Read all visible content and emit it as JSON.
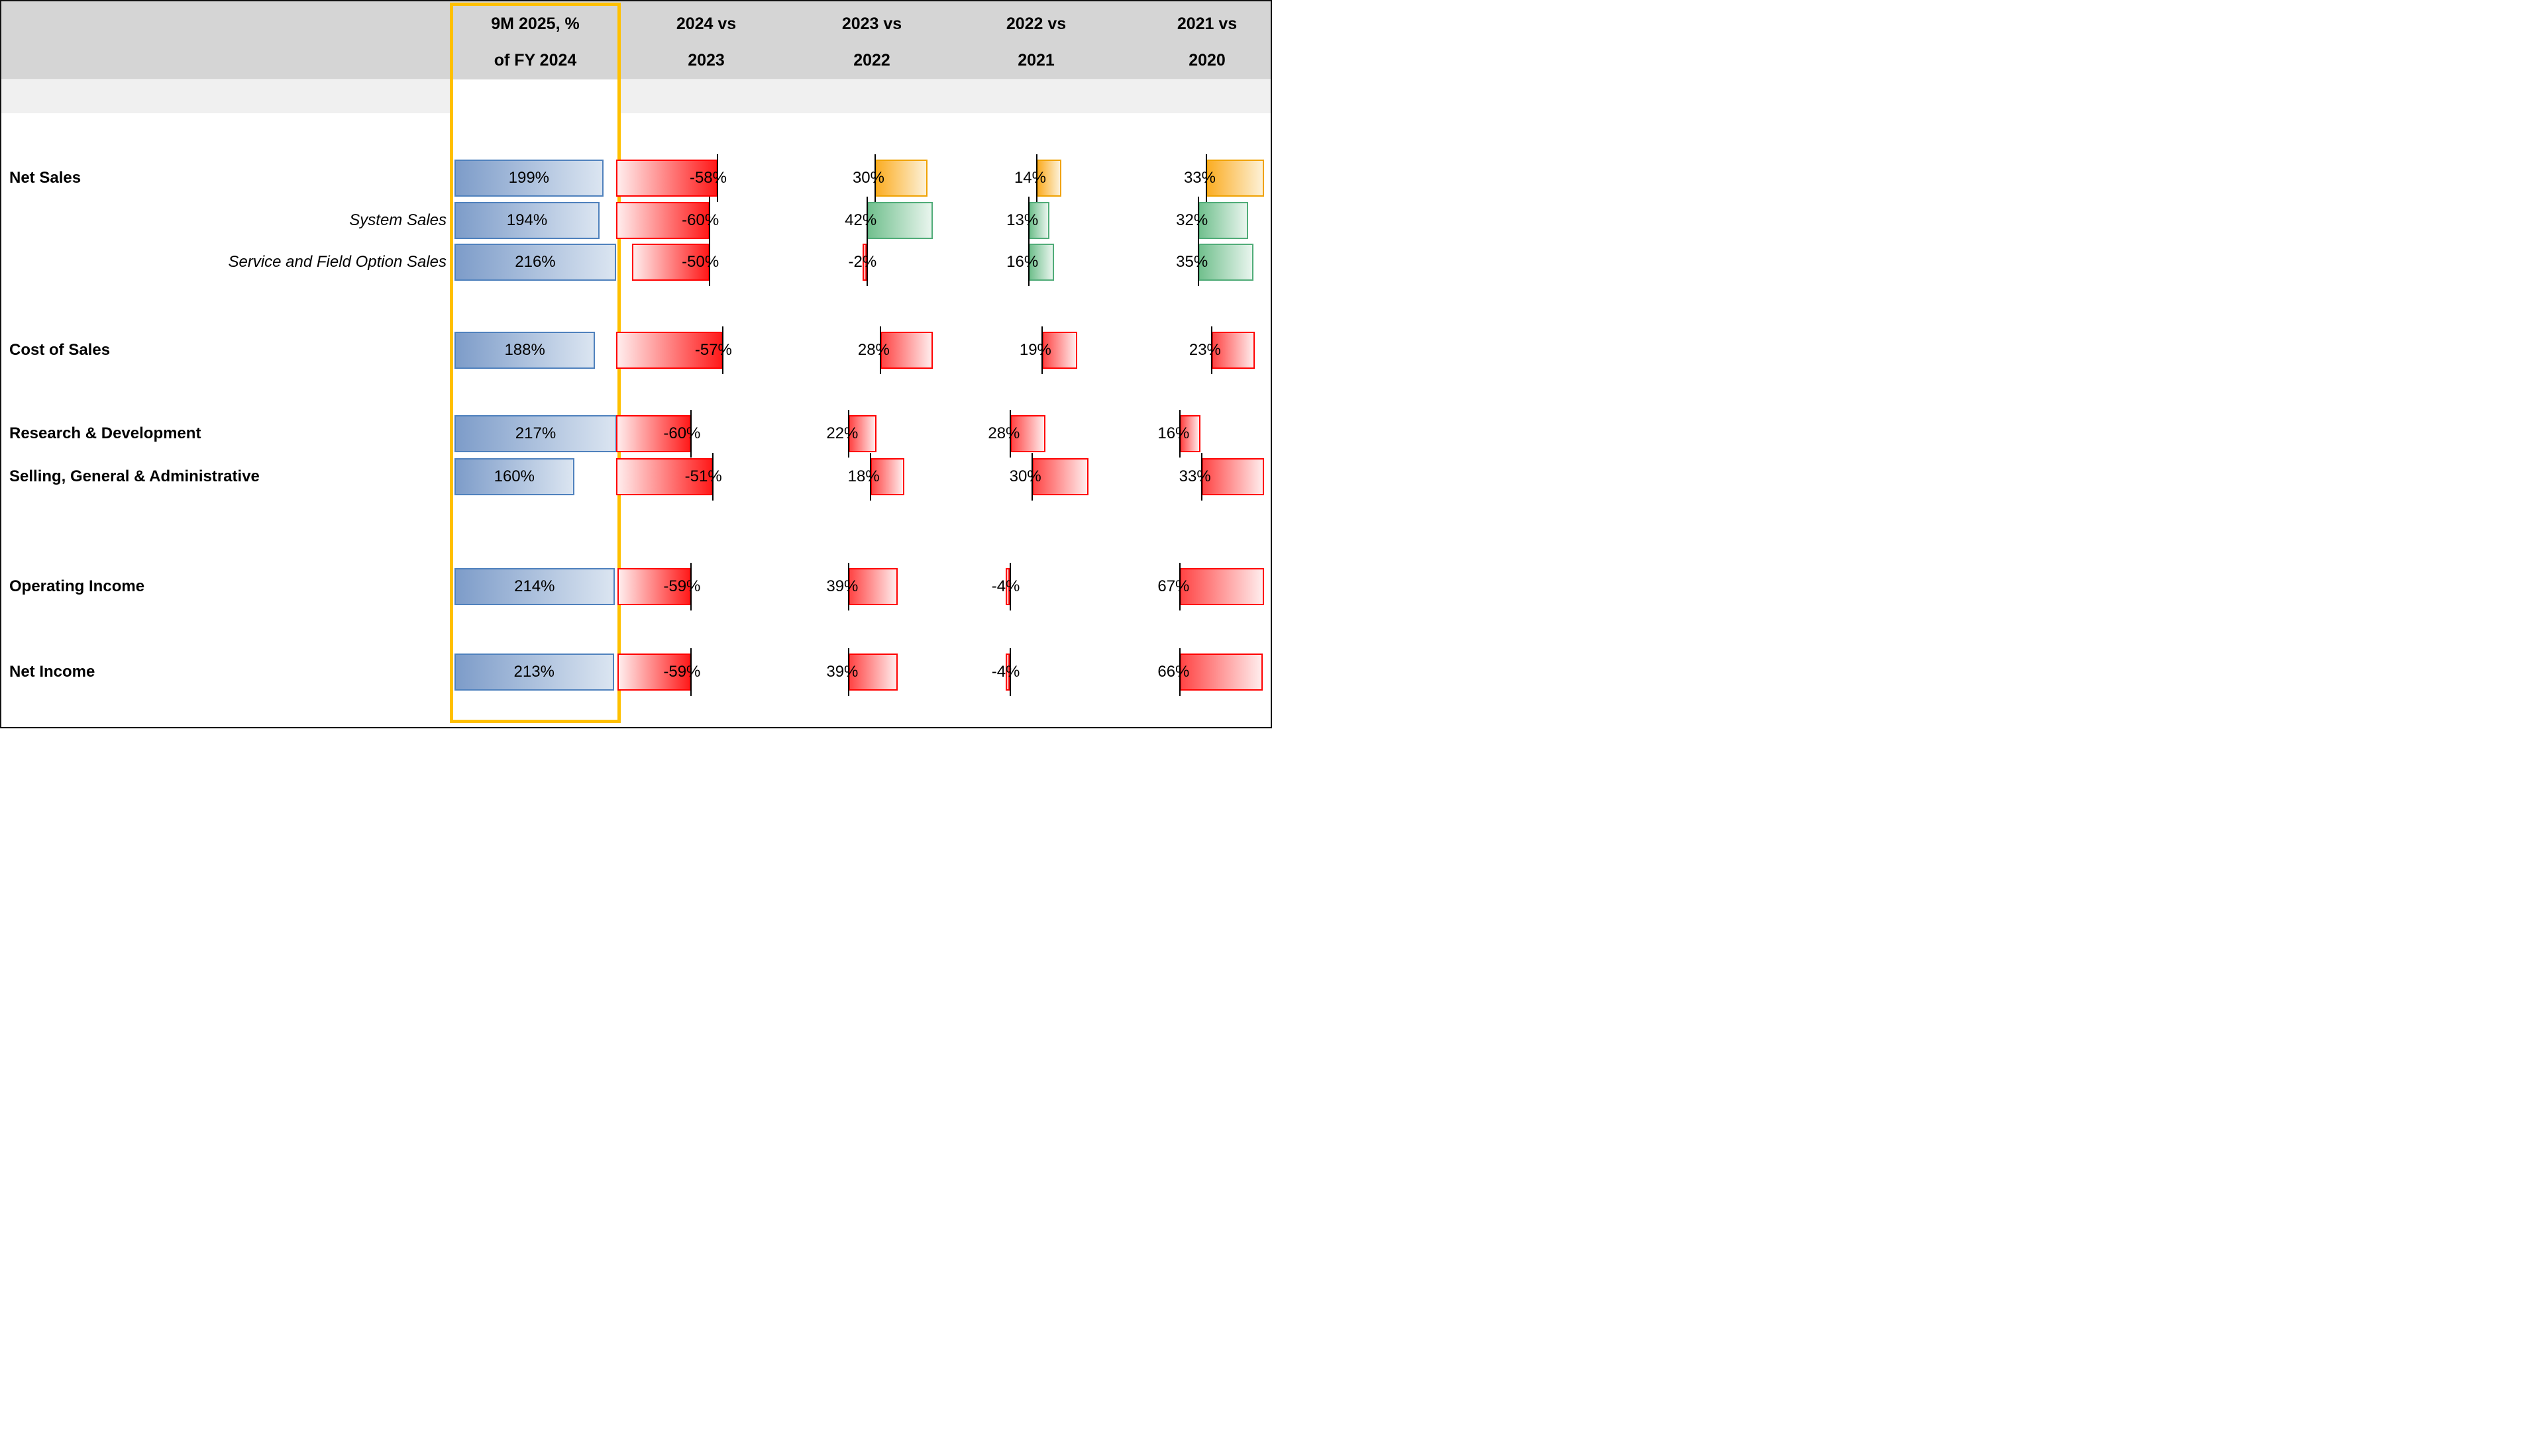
{
  "header": {
    "columns": [
      {
        "line1": "9M 2025, %",
        "line2": "of FY 2024"
      },
      {
        "line1": "2024 vs",
        "line2": "2023"
      },
      {
        "line1": "2023 vs",
        "line2": "2022"
      },
      {
        "line1": "2022 vs",
        "line2": "2021"
      },
      {
        "line1": "2021 vs",
        "line2": "2020"
      }
    ],
    "highlight_color": "#FFC000"
  },
  "rows": [
    {
      "label": "Net Sales",
      "style": "bold",
      "values": [
        "199%",
        "-58%",
        "30%",
        "14%",
        "33%"
      ],
      "colors": [
        "blue",
        "red",
        "orange",
        "orange",
        "orange"
      ]
    },
    {
      "label": "System Sales",
      "style": "italic",
      "values": [
        "194%",
        "-60%",
        "42%",
        "13%",
        "32%"
      ],
      "colors": [
        "blue",
        "red",
        "green",
        "green",
        "green"
      ]
    },
    {
      "label": "Service and Field Option Sales",
      "style": "italic",
      "values": [
        "216%",
        "-50%",
        "-2%",
        "16%",
        "35%"
      ],
      "colors": [
        "blue",
        "red",
        "red",
        "green",
        "green"
      ]
    },
    {
      "label": "Cost of Sales",
      "style": "bold",
      "values": [
        "188%",
        "-57%",
        "28%",
        "19%",
        "23%"
      ],
      "colors": [
        "blue",
        "red",
        "red",
        "red",
        "red"
      ]
    },
    {
      "label": "Research & Development",
      "style": "bold",
      "values": [
        "217%",
        "-60%",
        "22%",
        "28%",
        "16%"
      ],
      "colors": [
        "blue",
        "red",
        "red",
        "red",
        "red"
      ]
    },
    {
      "label": "Selling, General & Administrative",
      "style": "bold",
      "values": [
        "160%",
        "-51%",
        "18%",
        "30%",
        "33%"
      ],
      "colors": [
        "blue",
        "red",
        "red",
        "red",
        "red"
      ]
    },
    {
      "label": "Operating Income",
      "style": "bold",
      "values": [
        "214%",
        "-59%",
        "39%",
        "-4%",
        "67%"
      ],
      "colors": [
        "blue",
        "red",
        "red",
        "red",
        "red"
      ]
    },
    {
      "label": "Net Income",
      "style": "bold",
      "values": [
        "213%",
        "-59%",
        "39%",
        "-4%",
        "66%"
      ],
      "colors": [
        "blue",
        "red",
        "red",
        "red",
        "red"
      ]
    }
  ],
  "palettes": {
    "blue": {
      "border": "#4f81bd",
      "from": "#7d9cc9",
      "to": "#dbe5f1"
    },
    "red": {
      "border": "#ff0000",
      "from": "#ff4545",
      "to": "#ffeded"
    },
    "red_neg": {
      "border": "#ff0000",
      "from": "#ffeded",
      "to": "#ff1a1a"
    },
    "orange": {
      "border": "#f0a202",
      "from": "#fbad24",
      "to": "#fdf1d7"
    },
    "green": {
      "border": "#50ac78",
      "from": "#72c08e",
      "to": "#e9f5ee"
    }
  },
  "chart_data": {
    "type": "bar",
    "orientation": "horizontal",
    "title": "",
    "categories": [
      "Net Sales",
      "System Sales",
      "Service and Field Option Sales",
      "Cost of Sales",
      "Research & Development",
      "Selling, General & Administrative",
      "Operating Income",
      "Net Income"
    ],
    "series": [
      {
        "name": "9M 2025, % of FY 2024",
        "unit": "%",
        "highlighted": true,
        "bar_color": "blue",
        "values": [
          199,
          194,
          216,
          188,
          217,
          160,
          214,
          213
        ]
      },
      {
        "name": "2024 vs 2023",
        "unit": "%",
        "values": [
          -58,
          -60,
          -50,
          -57,
          -60,
          -51,
          -59,
          -59
        ],
        "bar_colors": [
          "red",
          "red",
          "red",
          "red",
          "red",
          "red",
          "red",
          "red"
        ]
      },
      {
        "name": "2023 vs 2022",
        "unit": "%",
        "values": [
          30,
          42,
          -2,
          28,
          22,
          18,
          39,
          39
        ],
        "bar_colors": [
          "orange",
          "green",
          "red",
          "red",
          "red",
          "red",
          "red",
          "red"
        ]
      },
      {
        "name": "2022 vs 2021",
        "unit": "%",
        "values": [
          14,
          13,
          16,
          19,
          28,
          30,
          -4,
          -4
        ],
        "bar_colors": [
          "orange",
          "green",
          "green",
          "red",
          "red",
          "red",
          "red",
          "red"
        ]
      },
      {
        "name": "2021 vs 2020",
        "unit": "%",
        "values": [
          33,
          32,
          35,
          23,
          16,
          33,
          67,
          66
        ],
        "bar_colors": [
          "orange",
          "green",
          "green",
          "red",
          "red",
          "red",
          "red",
          "red"
        ]
      }
    ],
    "legend": "none",
    "grid": false,
    "value_labels": "shown on every bar",
    "negative_color": "red",
    "highlight_box_color": "#FFC000"
  }
}
